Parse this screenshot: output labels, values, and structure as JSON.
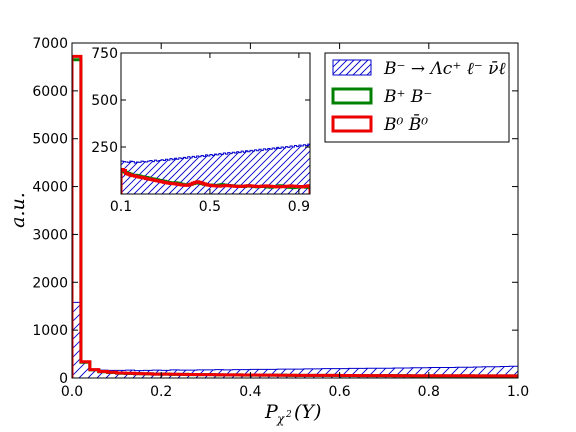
{
  "chart_data": [
    {
      "type": "histogram",
      "xlabel": "P_χ²(Y)",
      "ylabel": "a.u.",
      "xlim": [
        0.0,
        1.0
      ],
      "ylim": [
        0,
        7000
      ],
      "xticks": [
        "0.0",
        "0.2",
        "0.4",
        "0.6",
        "0.8",
        "1.0"
      ],
      "yticks": [
        "0",
        "1000",
        "2000",
        "3000",
        "4000",
        "5000",
        "6000",
        "7000"
      ],
      "legend_position": "top-right",
      "bin_width": 0.02,
      "series": [
        {
          "name": "B⁻ → Λc⁺ ℓ⁻ ν̄ℓ",
          "style": "hatched",
          "color": "#0000cc",
          "values": [
            1580,
            320,
            180,
            165,
            160,
            160,
            165,
            155,
            160,
            165,
            160,
            170,
            165,
            165,
            170,
            170,
            175,
            170,
            175,
            175,
            180,
            180,
            180,
            185,
            185,
            185,
            190,
            190,
            195,
            195,
            195,
            200,
            200,
            205,
            205,
            205,
            210,
            210,
            215,
            215,
            220,
            220,
            220,
            225,
            225,
            230,
            235,
            235,
            240,
            245
          ]
        },
        {
          "name": "B⁺ B⁻",
          "style": "step",
          "color": "#008000",
          "values": [
            6650,
            330,
            170,
            130,
            115,
            100,
            95,
            90,
            85,
            80,
            80,
            75,
            75,
            70,
            70,
            70,
            65,
            65,
            65,
            60,
            60,
            60,
            60,
            60,
            55,
            55,
            55,
            55,
            55,
            55,
            50,
            50,
            50,
            50,
            50,
            50,
            50,
            50,
            45,
            45,
            45,
            45,
            45,
            45,
            45,
            45,
            45,
            45,
            45,
            45
          ]
        },
        {
          "name": "B⁰ B̄⁰",
          "style": "step",
          "color": "#ee0000",
          "values": [
            6720,
            340,
            175,
            135,
            120,
            105,
            98,
            92,
            88,
            82,
            80,
            78,
            75,
            72,
            70,
            70,
            68,
            66,
            65,
            62,
            62,
            60,
            60,
            58,
            58,
            56,
            56,
            55,
            54,
            54,
            52,
            52,
            50,
            50,
            50,
            50,
            48,
            48,
            48,
            48,
            46,
            46,
            46,
            46,
            46,
            45,
            45,
            45,
            45,
            45
          ]
        }
      ]
    },
    {
      "type": "histogram",
      "inset": true,
      "xlim": [
        0.1,
        0.95
      ],
      "ylim": [
        0,
        750
      ],
      "xticks": [
        "0.1",
        "0.5",
        "0.9"
      ],
      "yticks": [
        "250",
        "500",
        "750"
      ],
      "bin_width": 0.01,
      "series": [
        {
          "name": "B⁻ → Λc⁺ ℓ⁻ ν̄ℓ",
          "style": "hatched",
          "color": "#0000cc",
          "values": [
            175,
            172,
            170,
            168,
            175,
            172,
            165,
            170,
            168,
            175,
            172,
            170,
            175,
            178,
            172,
            180,
            175,
            178,
            182,
            178,
            185,
            180,
            188,
            182,
            190,
            185,
            192,
            188,
            195,
            190,
            198,
            192,
            200,
            195,
            202,
            198,
            205,
            200,
            208,
            202,
            210,
            205,
            212,
            208,
            215,
            210,
            218,
            212,
            220,
            215,
            222,
            218,
            225,
            220,
            228,
            222,
            230,
            225,
            232,
            228,
            235,
            230,
            238,
            232,
            240,
            235,
            242,
            238,
            245,
            240,
            248,
            242,
            250,
            245,
            252,
            248,
            255,
            250,
            258,
            252,
            260,
            255,
            262,
            258,
            265
          ]
        },
        {
          "name": "B⁺ B⁻",
          "style": "step",
          "color": "#008000",
          "values": [
            120,
            118,
            115,
            110,
            105,
            100,
            100,
            98,
            95,
            92,
            90,
            88,
            85,
            82,
            80,
            78,
            75,
            72,
            70,
            68,
            65,
            62,
            60,
            58,
            60,
            58,
            55,
            52,
            50,
            48,
            50,
            52,
            55,
            58,
            60,
            58,
            55,
            52,
            50,
            48,
            48,
            46,
            45,
            46,
            48,
            50,
            48,
            46,
            45,
            44,
            43,
            42,
            42,
            41,
            40,
            40,
            42,
            44,
            42,
            40,
            39,
            38,
            40,
            42,
            40,
            38,
            37,
            36,
            38,
            40,
            42,
            44,
            42,
            40,
            38,
            36,
            35,
            34,
            35,
            36,
            38,
            40,
            38,
            36,
            35
          ]
        },
        {
          "name": "B⁰ B̄⁰",
          "style": "step",
          "color": "#ee0000",
          "values": [
            130,
            125,
            110,
            105,
            100,
            98,
            95,
            92,
            90,
            88,
            85,
            82,
            80,
            78,
            75,
            72,
            70,
            68,
            65,
            62,
            60,
            58,
            56,
            55,
            54,
            52,
            50,
            48,
            47,
            46,
            48,
            52,
            58,
            62,
            65,
            62,
            58,
            54,
            50,
            47,
            45,
            44,
            43,
            42,
            42,
            43,
            44,
            45,
            44,
            43,
            42,
            41,
            40,
            40,
            41,
            42,
            43,
            44,
            43,
            42,
            41,
            40,
            40,
            41,
            42,
            43,
            42,
            41,
            40,
            39,
            38,
            38,
            39,
            40,
            41,
            42,
            43,
            42,
            41,
            40,
            39,
            38,
            40,
            42,
            44
          ]
        }
      ]
    }
  ]
}
